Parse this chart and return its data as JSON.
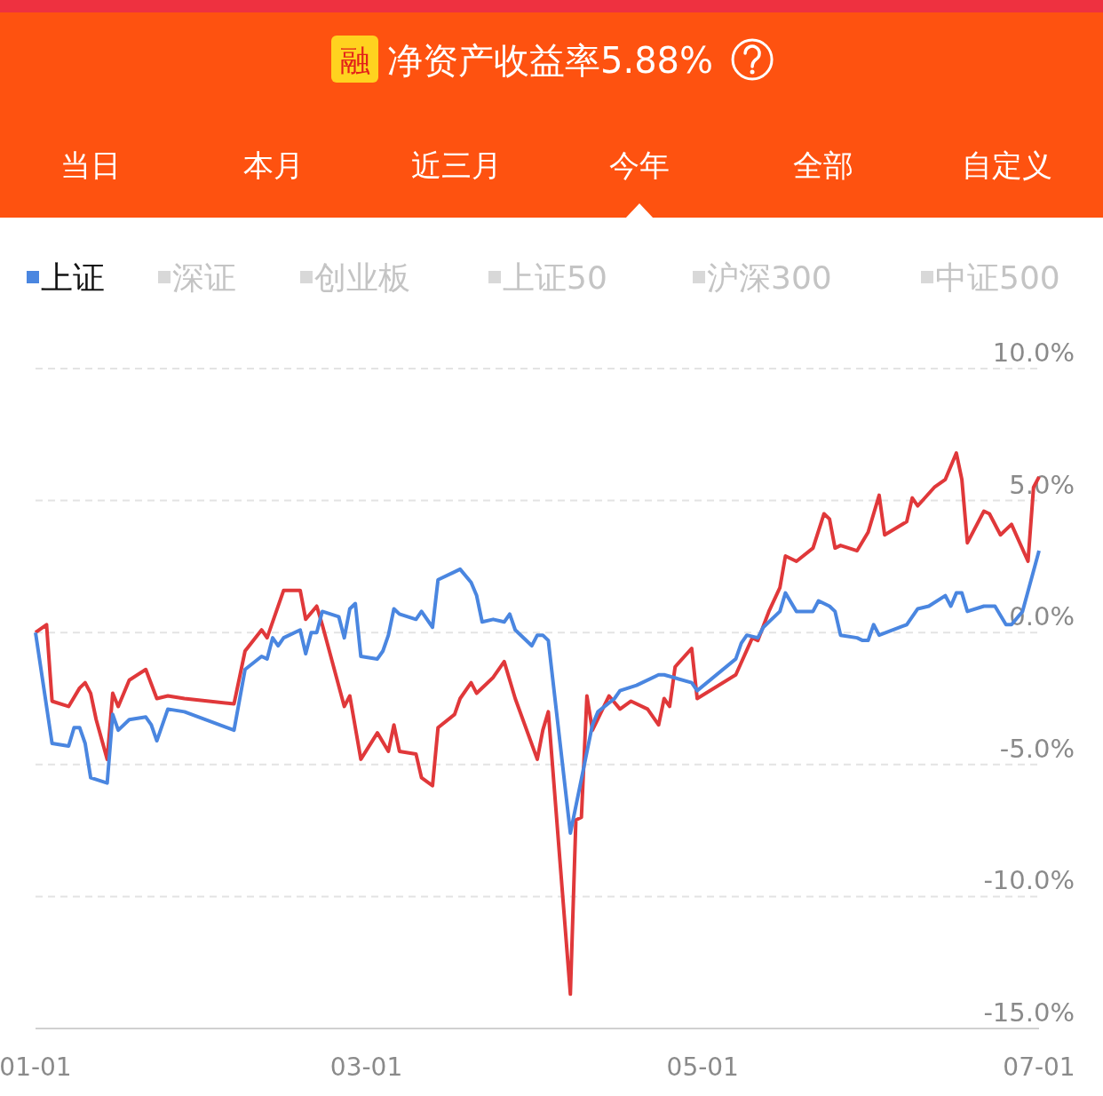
{
  "chart_data": {
    "type": "line",
    "title": "净资产收益率5.88%",
    "annotations": [
      "融",
      "当日",
      "本月",
      "近三月",
      "今年",
      "全部",
      "自定义",
      "深证",
      "创业板",
      "上证50",
      "沪深300",
      "中证500"
    ],
    "xlim": [
      "--01-01",
      "--07-01"
    ],
    "xticks": [
      {
        "value": "--01-01",
        "label": "01-01"
      },
      {
        "value": "--03-01",
        "label": "03-01"
      },
      {
        "value": "--05-01",
        "label": "05-01"
      },
      {
        "value": "--07-01",
        "label": "07-01"
      }
    ],
    "ylim": [
      -15,
      10
    ],
    "yticks": [
      {
        "value": 10,
        "label": "10.0%"
      },
      {
        "value": 5,
        "label": "5.0%"
      },
      {
        "value": 0,
        "label": "0.0%"
      },
      {
        "value": -5,
        "label": "-5.0%"
      },
      {
        "value": -10,
        "label": "-10.0%"
      },
      {
        "value": -15,
        "label": "-15.0%"
      }
    ],
    "grid": "y",
    "legend": "top",
    "marker": "none",
    "line_style": "solid",
    "series": [
      {
        "color": "#e0383a",
        "x": [
          "--01-01",
          "--01-03",
          "--01-04",
          "--01-07",
          "--01-09",
          "--01-10",
          "--01-11",
          "--01-12",
          "--01-14",
          "--01-15",
          "--01-16",
          "--01-18",
          "--01-21",
          "--01-23",
          "--01-25",
          "--01-28",
          "--02-06",
          "--02-08",
          "--02-11",
          "--02-12",
          "--02-15",
          "--02-18",
          "--02-19",
          "--02-21",
          "--02-22",
          "--02-26",
          "--02-27",
          "--02-29",
          "--03-03",
          "--03-05",
          "--03-06",
          "--03-07",
          "--03-10",
          "--03-11",
          "--03-13",
          "--03-14",
          "--03-17",
          "--03-18",
          "--03-20",
          "--03-21",
          "--03-24",
          "--03-26",
          "--03-28",
          "--04-01",
          "--04-02",
          "--04-03",
          "--04-07",
          "--04-08",
          "--04-09",
          "--04-10",
          "--04-11",
          "--04-14",
          "--04-16",
          "--04-18",
          "--04-21",
          "--04-23",
          "--04-24",
          "--04-25",
          "--04-26",
          "--04-29",
          "--04-30",
          "--05-07",
          "--05-10",
          "--05-11",
          "--05-13",
          "--05-15",
          "--05-16",
          "--05-18",
          "--05-21",
          "--05-23",
          "--05-24",
          "--05-25",
          "--05-26",
          "--05-29",
          "--05-31",
          "--06-02",
          "--06-03",
          "--06-07",
          "--06-08",
          "--06-09",
          "--06-12",
          "--06-14",
          "--06-16",
          "--06-17",
          "--06-18",
          "--06-21",
          "--06-22",
          "--06-24",
          "--06-26",
          "--06-29",
          "--06-30",
          "--07-01"
        ],
        "values": [
          0,
          0.3,
          -2.6,
          -2.8,
          -2.1,
          -1.9,
          -2.3,
          -3.3,
          -4.8,
          -2.3,
          -2.8,
          -1.8,
          -1.4,
          -2.5,
          -2.4,
          -2.5,
          -2.7,
          -0.7,
          0.1,
          -0.2,
          1.6,
          1.6,
          0.5,
          1.0,
          0.3,
          -2.8,
          -2.4,
          -4.8,
          -3.8,
          -4.5,
          -3.5,
          -4.5,
          -4.6,
          -5.5,
          -5.8,
          -3.6,
          -3.1,
          -2.5,
          -1.9,
          -2.3,
          -1.7,
          -1.1,
          -2.5,
          -4.8,
          -3.7,
          -3.0,
          -13.7,
          -7.1,
          -7.0,
          -2.4,
          -3.7,
          -2.4,
          -2.9,
          -2.6,
          -2.9,
          -3.5,
          -2.5,
          -2.8,
          -1.3,
          -0.6,
          -2.5,
          -1.6,
          -0.2,
          -0.3,
          0.8,
          1.7,
          2.9,
          2.7,
          3.2,
          4.5,
          4.3,
          3.2,
          3.3,
          3.1,
          3.8,
          5.2,
          3.7,
          4.2,
          5.1,
          4.8,
          5.5,
          5.8,
          6.8,
          5.8,
          3.4,
          4.6,
          4.5,
          3.7,
          4.1,
          2.7,
          5.5,
          5.9
        ]
      },
      {
        "name": "上证",
        "color": "#4a86e0",
        "x": [
          "--01-01",
          "--01-04",
          "--01-07",
          "--01-08",
          "--01-09",
          "--01-10",
          "--01-11",
          "--01-14",
          "--01-15",
          "--01-16",
          "--01-18",
          "--01-21",
          "--01-22",
          "--01-23",
          "--01-25",
          "--01-28",
          "--02-06",
          "--02-08",
          "--02-11",
          "--02-12",
          "--02-13",
          "--02-14",
          "--02-15",
          "--02-18",
          "--02-19",
          "--02-20",
          "--02-21",
          "--02-22",
          "--02-25",
          "--02-26",
          "--02-27",
          "--02-28",
          "--02-29",
          "--03-03",
          "--03-04",
          "--03-05",
          "--03-06",
          "--03-07",
          "--03-10",
          "--03-11",
          "--03-13",
          "--03-14",
          "--03-18",
          "--03-20",
          "--03-21",
          "--03-22",
          "--03-24",
          "--03-26",
          "--03-27",
          "--03-28",
          "--03-31",
          "--04-01",
          "--04-02",
          "--04-03",
          "--04-07",
          "--04-11",
          "--04-12",
          "--04-15",
          "--04-16",
          "--04-19",
          "--04-23",
          "--04-24",
          "--04-29",
          "--04-30",
          "--05-07",
          "--05-08",
          "--05-09",
          "--05-11",
          "--05-12",
          "--05-15",
          "--05-16",
          "--05-18",
          "--05-21",
          "--05-22",
          "--05-24",
          "--05-25",
          "--05-26",
          "--05-29",
          "--05-30",
          "--05-31",
          "--06-01",
          "--06-02",
          "--06-07",
          "--06-09",
          "--06-11",
          "--06-14",
          "--06-15",
          "--06-16",
          "--06-17",
          "--06-18",
          "--06-21",
          "--06-23",
          "--06-25",
          "--06-26",
          "--06-28",
          "--07-01"
        ],
        "values": [
          0,
          -4.2,
          -4.3,
          -3.6,
          -3.6,
          -4.2,
          -5.5,
          -5.7,
          -3.1,
          -3.7,
          -3.3,
          -3.2,
          -3.5,
          -4.1,
          -2.9,
          -3.0,
          -3.7,
          -1.4,
          -0.9,
          -1.0,
          -0.2,
          -0.5,
          -0.2,
          0.1,
          -0.8,
          0,
          0,
          0.8,
          0.6,
          -0.2,
          0.9,
          1.1,
          -0.9,
          -1.0,
          -0.7,
          -0.1,
          0.9,
          0.7,
          0.5,
          0.8,
          0.2,
          2.0,
          2.4,
          1.9,
          1.4,
          0.4,
          0.5,
          0.4,
          0.7,
          0.1,
          -0.5,
          -0.1,
          -0.1,
          -0.3,
          -7.6,
          -3.5,
          -3.0,
          -2.5,
          -2.2,
          -2.0,
          -1.6,
          -1.6,
          -1.9,
          -2.2,
          -1.0,
          -0.4,
          -0.1,
          -0.2,
          0.2,
          0.8,
          1.5,
          0.8,
          0.8,
          1.2,
          1.0,
          0.8,
          -0.1,
          -0.2,
          -0.3,
          -0.3,
          0.3,
          -0.1,
          0.3,
          0.9,
          1.0,
          1.4,
          1.0,
          1.5,
          1.5,
          0.8,
          1.0,
          1.0,
          0.3,
          0.3,
          0.8,
          3.1
        ]
      }
    ]
  }
}
